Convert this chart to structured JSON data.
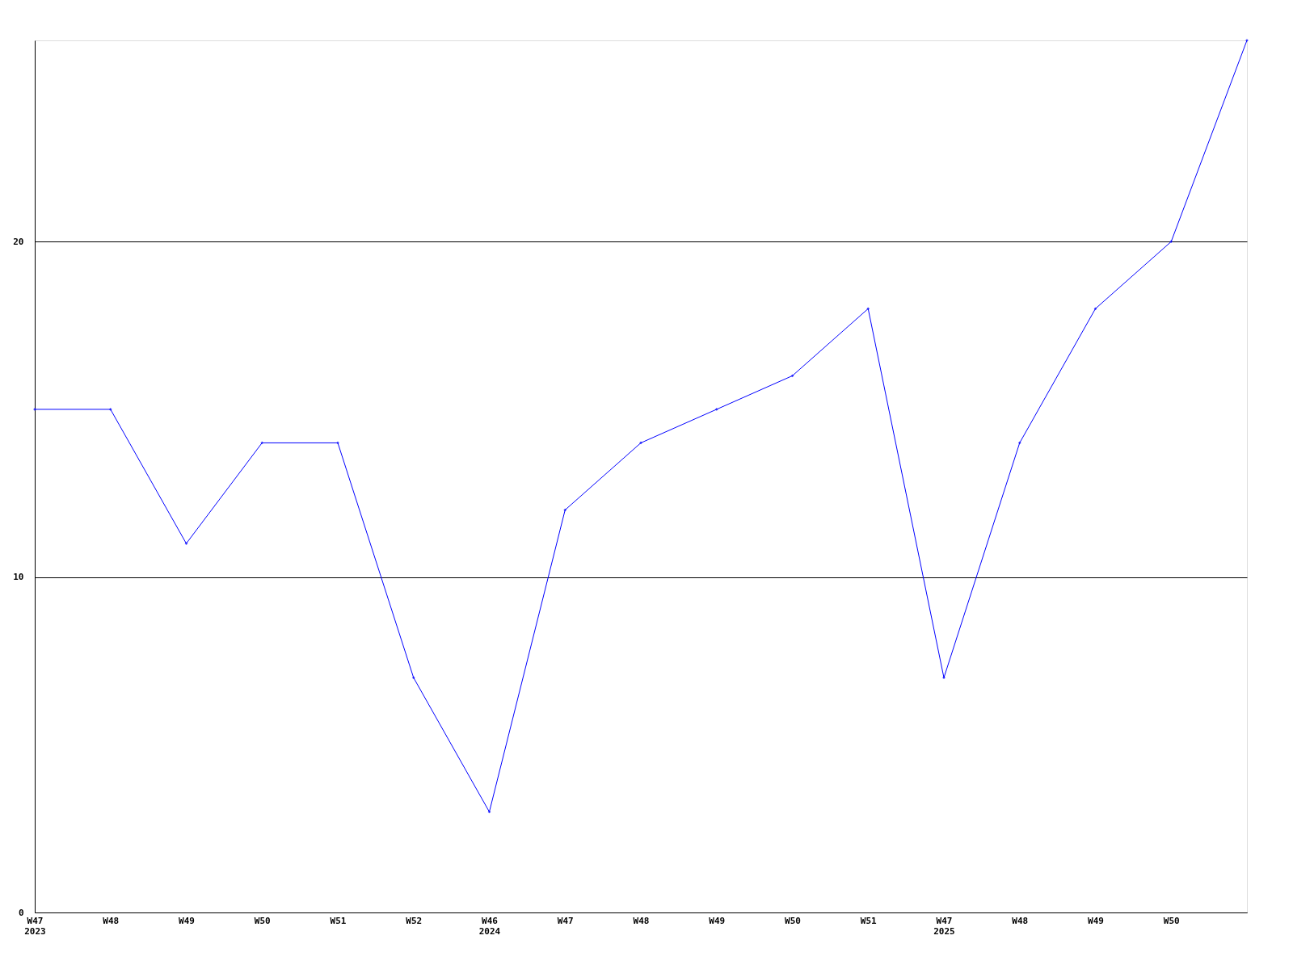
{
  "chart_data": {
    "type": "line",
    "categories": [
      "W47\n2023",
      "W48",
      "W49",
      "W50",
      "W51",
      "W52",
      "W46\n2024",
      "W47",
      "W48",
      "W49",
      "W50",
      "W51",
      "W47\n2025",
      "W48",
      "W49",
      "W50",
      null
    ],
    "series": [
      {
        "color": "#0000ff",
        "values": [
          15,
          15,
          11,
          14,
          14,
          7,
          3,
          12,
          14,
          15,
          16,
          18,
          7,
          14,
          18,
          20,
          26
        ]
      }
    ],
    "ylim": [
      0,
      26
    ],
    "yticks": [
      0,
      10,
      20
    ],
    "grid": "y",
    "marker": "diamond",
    "line_style": "solid"
  }
}
